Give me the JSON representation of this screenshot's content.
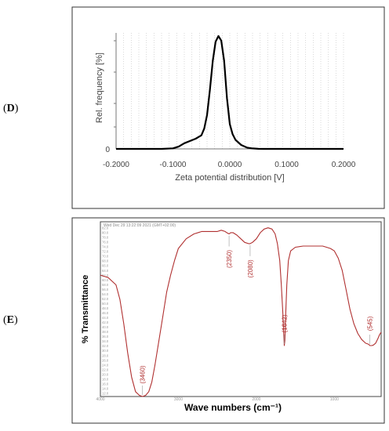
{
  "panels": {
    "d_label": "D",
    "e_label": "E"
  },
  "chart_data": [
    {
      "type": "line",
      "panel": "D",
      "title": "",
      "xlabel": "Zeta potential distribution [V]",
      "ylabel": "Rel. frequency [%]",
      "xlim": [
        -0.2,
        0.2
      ],
      "x_ticks": [
        -0.2,
        -0.1,
        0.0,
        0.1,
        0.2
      ],
      "x_tick_labels": [
        "-0.2000",
        "-0.1000",
        "0.0000",
        "0.1000",
        "0.2000"
      ],
      "y_tick_labels": [
        "0"
      ],
      "grid": "vertical dotted",
      "line_color": "#000000",
      "series": [
        {
          "x": [
            -0.2,
            -0.12,
            -0.1,
            -0.09,
            -0.08,
            -0.07,
            -0.06,
            -0.05,
            -0.045,
            -0.04,
            -0.035,
            -0.03,
            -0.025,
            -0.02,
            -0.015,
            -0.01,
            -0.005,
            0.0,
            0.005,
            0.01,
            0.02,
            0.03,
            0.04,
            0.05,
            0.06,
            0.2
          ],
          "y": [
            0,
            0,
            0.5,
            2,
            5,
            7,
            9,
            12,
            18,
            30,
            52,
            78,
            95,
            100,
            96,
            78,
            45,
            22,
            13,
            8,
            3.5,
            1.2,
            0.4,
            0.1,
            0,
            0
          ]
        }
      ]
    },
    {
      "type": "line",
      "panel": "E",
      "title": "",
      "xlabel": "Wave numbers (cm⁻¹)",
      "ylabel": "% Transmittance",
      "xlim": [
        4000,
        400
      ],
      "x_tick_labels": [
        "4000",
        "3000",
        "2000",
        "1000"
      ],
      "header_text": "Wed Dec 29 13:22:09 2021 (GMT+02:00)",
      "y_tick_labels": [
        "82.0",
        "80.0",
        "78.0",
        "76.0",
        "74.0",
        "72.0",
        "70.0",
        "68.0",
        "66.0",
        "64.0",
        "62.0",
        "60.0",
        "58.0",
        "56.0",
        "54.0",
        "52.0",
        "50.0",
        "48.0",
        "46.0",
        "44.0",
        "42.0",
        "40.0",
        "38.0",
        "36.0",
        "34.0",
        "32.0",
        "30.0",
        "28.0",
        "26.0",
        "24.0",
        "22.0",
        "20.0",
        "18.0",
        "16.0",
        "14.0",
        "12.0"
      ],
      "ylim": [
        12,
        84
      ],
      "line_color": "#b03030",
      "peak_labels": [
        "(3460)",
        "(2350)",
        "(2080)",
        "(1642)",
        "(545)"
      ],
      "peaks": [
        3460,
        2350,
        2080,
        1642,
        545
      ],
      "series": [
        {
          "x": [
            4000,
            3900,
            3800,
            3750,
            3700,
            3650,
            3600,
            3550,
            3500,
            3460,
            3420,
            3380,
            3340,
            3300,
            3250,
            3200,
            3150,
            3100,
            3050,
            3000,
            2900,
            2800,
            2700,
            2600,
            2500,
            2450,
            2400,
            2380,
            2350,
            2330,
            2300,
            2250,
            2200,
            2150,
            2100,
            2080,
            2050,
            2000,
            1950,
            1900,
            1850,
            1800,
            1760,
            1730,
            1700,
            1680,
            1660,
            1650,
            1642,
            1635,
            1625,
            1610,
            1590,
            1560,
            1500,
            1400,
            1300,
            1200,
            1150,
            1100,
            1050,
            1000,
            950,
            900,
            850,
            800,
            750,
            700,
            650,
            600,
            560,
            545,
            520,
            500,
            470,
            440,
            420,
            400
          ],
          "y": [
            62,
            61,
            58,
            52,
            42,
            30,
            20,
            14,
            12.5,
            12,
            12.5,
            14,
            18,
            25,
            35,
            45,
            55,
            62,
            68,
            73,
            77,
            79,
            80,
            80,
            80,
            80.5,
            80,
            79.5,
            79,
            79.5,
            79.5,
            78.5,
            77,
            75.5,
            75,
            75,
            75.5,
            77,
            79.5,
            81,
            81.5,
            81,
            79,
            75,
            68,
            58,
            46,
            38,
            33,
            35,
            45,
            58,
            68,
            72,
            73.5,
            74,
            74,
            74,
            74,
            73.5,
            73,
            72,
            69,
            64,
            56,
            48,
            42,
            38,
            35.5,
            34,
            33.5,
            33,
            33,
            33.2,
            34,
            36,
            37.5,
            38.5
          ]
        }
      ]
    }
  ]
}
